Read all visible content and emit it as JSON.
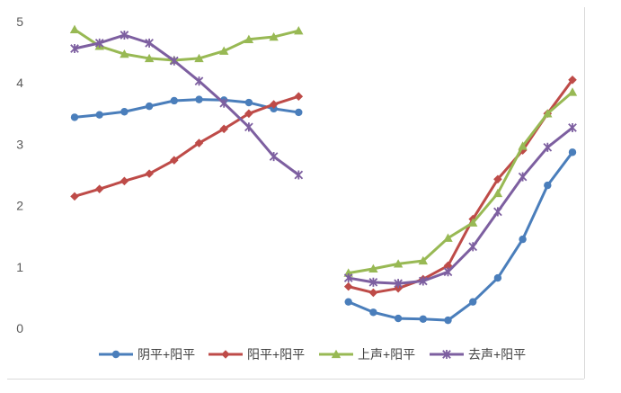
{
  "chart_data": {
    "type": "line",
    "title": "",
    "xlabel": "",
    "ylabel": "",
    "ylim": [
      0,
      5
    ],
    "yticks": [
      0,
      1,
      2,
      3,
      4,
      5
    ],
    "grid": false,
    "legend_position": "bottom",
    "segments": [
      {
        "x": [
          1,
          2,
          3,
          4,
          5,
          6,
          7,
          8,
          9,
          10
        ]
      },
      {
        "x": [
          12,
          13,
          14,
          15,
          16,
          17,
          18,
          19,
          20,
          21
        ]
      }
    ],
    "series": [
      {
        "name": "阴平+阳平",
        "color": "#4a7ebb",
        "marker": "circle",
        "segments": [
          [
            3.44,
            3.48,
            3.53,
            3.62,
            3.71,
            3.73,
            3.72,
            3.68,
            3.58,
            3.52
          ],
          [
            0.43,
            0.26,
            0.16,
            0.15,
            0.13,
            0.43,
            0.82,
            1.45,
            2.33,
            2.87
          ]
        ]
      },
      {
        "name": "阳平+阳平",
        "color": "#be4b48",
        "marker": "diamond",
        "segments": [
          [
            2.15,
            2.27,
            2.4,
            2.52,
            2.74,
            3.02,
            3.25,
            3.5,
            3.65,
            3.78
          ],
          [
            0.68,
            0.58,
            0.65,
            0.8,
            1.02,
            1.78,
            2.43,
            2.9,
            3.5,
            4.05
          ]
        ]
      },
      {
        "name": "上声+阳平",
        "color": "#98b954",
        "marker": "triangle",
        "segments": [
          [
            4.87,
            4.6,
            4.47,
            4.4,
            4.37,
            4.4,
            4.52,
            4.71,
            4.75,
            4.85
          ],
          [
            0.9,
            0.97,
            1.05,
            1.1,
            1.47,
            1.72,
            2.2,
            2.97,
            3.5,
            3.85
          ]
        ]
      },
      {
        "name": "去声+阳平",
        "color": "#7d5fa0",
        "marker": "x",
        "segments": [
          [
            4.56,
            4.65,
            4.78,
            4.65,
            4.36,
            4.03,
            3.67,
            3.28,
            2.8,
            2.5
          ],
          [
            0.82,
            0.75,
            0.73,
            0.77,
            0.92,
            1.33,
            1.9,
            2.47,
            2.95,
            3.27
          ]
        ]
      }
    ]
  }
}
